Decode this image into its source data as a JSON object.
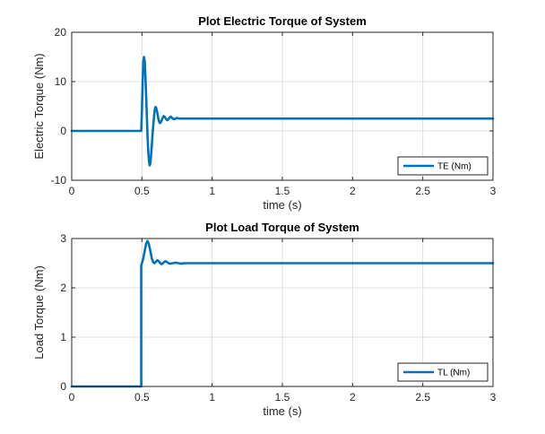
{
  "chart_data": [
    {
      "type": "line",
      "title": "Plot Electric Torque of System",
      "xlabel": "time (s)",
      "ylabel": "Electric Torque (Nm)",
      "xlim": [
        0,
        3
      ],
      "ylim": [
        -10,
        20
      ],
      "x_ticks": [
        "0",
        "0.5",
        "1",
        "1.5",
        "2",
        "2.5",
        "3"
      ],
      "y_ticks": [
        "-10",
        "0",
        "10",
        "20"
      ],
      "grid": true,
      "legend_position": "bottom-right",
      "series": [
        {
          "name": "TE (Nm)",
          "color": "#0072BD",
          "x": [
            0,
            0.49,
            0.495,
            0.5,
            0.505,
            0.51,
            0.515,
            0.52,
            0.525,
            0.53,
            0.535,
            0.54,
            0.545,
            0.55,
            0.555,
            0.56,
            0.565,
            0.57,
            0.575,
            0.58,
            0.585,
            0.59,
            0.595,
            0.6,
            0.605,
            0.61,
            0.615,
            0.62,
            0.625,
            0.63,
            0.635,
            0.64,
            0.645,
            0.65,
            0.655,
            0.66,
            0.665,
            0.67,
            0.675,
            0.68,
            0.685,
            0.69,
            0.695,
            0.7,
            0.705,
            0.71,
            0.715,
            0.72,
            0.725,
            0.73,
            0.735,
            0.74,
            0.745,
            0.75,
            0.755,
            0.76,
            0.765,
            0.77,
            0.775,
            0.78,
            0.785,
            0.79,
            0.795,
            0.8,
            0.805,
            0.81,
            0.815,
            0.82,
            0.825,
            0.83,
            0.835,
            0.84,
            0.845,
            0.85,
            0.9,
            1.0,
            3.0
          ],
          "y": [
            0,
            0,
            0,
            4,
            10,
            14,
            15,
            14,
            11,
            7,
            3,
            -1,
            -4,
            -6,
            -7,
            -6.5,
            -5,
            -3,
            -1,
            1,
            2.5,
            4,
            4.8,
            4.8,
            4.3,
            3.6,
            2.8,
            2.1,
            1.7,
            1.6,
            1.8,
            2.1,
            2.5,
            2.8,
            3.0,
            2.9,
            2.7,
            2.5,
            2.3,
            2.2,
            2.3,
            2.4,
            2.6,
            2.8,
            2.9,
            2.8,
            2.6,
            2.5,
            2.4,
            2.4,
            2.4,
            2.5,
            2.6,
            2.6,
            2.6,
            2.55,
            2.5,
            2.5,
            2.5,
            2.5,
            2.5,
            2.5,
            2.5,
            2.5,
            2.5,
            2.5,
            2.5,
            2.5,
            2.5,
            2.5,
            2.5,
            2.5,
            2.5,
            2.5,
            2.5,
            2.5,
            2.5
          ]
        }
      ]
    },
    {
      "type": "line",
      "title": "Plot Load Torque of System",
      "xlabel": "time (s)",
      "ylabel": "Load Torque (Nm)",
      "xlim": [
        0,
        3
      ],
      "ylim": [
        0,
        3
      ],
      "x_ticks": [
        "0",
        "0.5",
        "1",
        "1.5",
        "2",
        "2.5",
        "3"
      ],
      "y_ticks": [
        "0",
        "1",
        "2",
        "3"
      ],
      "grid": true,
      "legend_position": "bottom-right",
      "series": [
        {
          "name": "TL (Nm)",
          "color": "#0072BD",
          "x": [
            0,
            0.495,
            0.495,
            0.5,
            0.51,
            0.52,
            0.53,
            0.54,
            0.55,
            0.56,
            0.57,
            0.58,
            0.59,
            0.6,
            0.61,
            0.62,
            0.63,
            0.64,
            0.65,
            0.66,
            0.67,
            0.68,
            0.69,
            0.7,
            0.72,
            0.74,
            0.76,
            0.78,
            0.8,
            0.85,
            1.0,
            3.0
          ],
          "y": [
            0,
            0,
            2.45,
            2.5,
            2.6,
            2.75,
            2.9,
            2.95,
            2.88,
            2.75,
            2.6,
            2.52,
            2.5,
            2.53,
            2.56,
            2.54,
            2.5,
            2.48,
            2.5,
            2.53,
            2.54,
            2.52,
            2.5,
            2.49,
            2.5,
            2.51,
            2.5,
            2.49,
            2.5,
            2.5,
            2.5,
            2.5
          ]
        }
      ]
    }
  ]
}
